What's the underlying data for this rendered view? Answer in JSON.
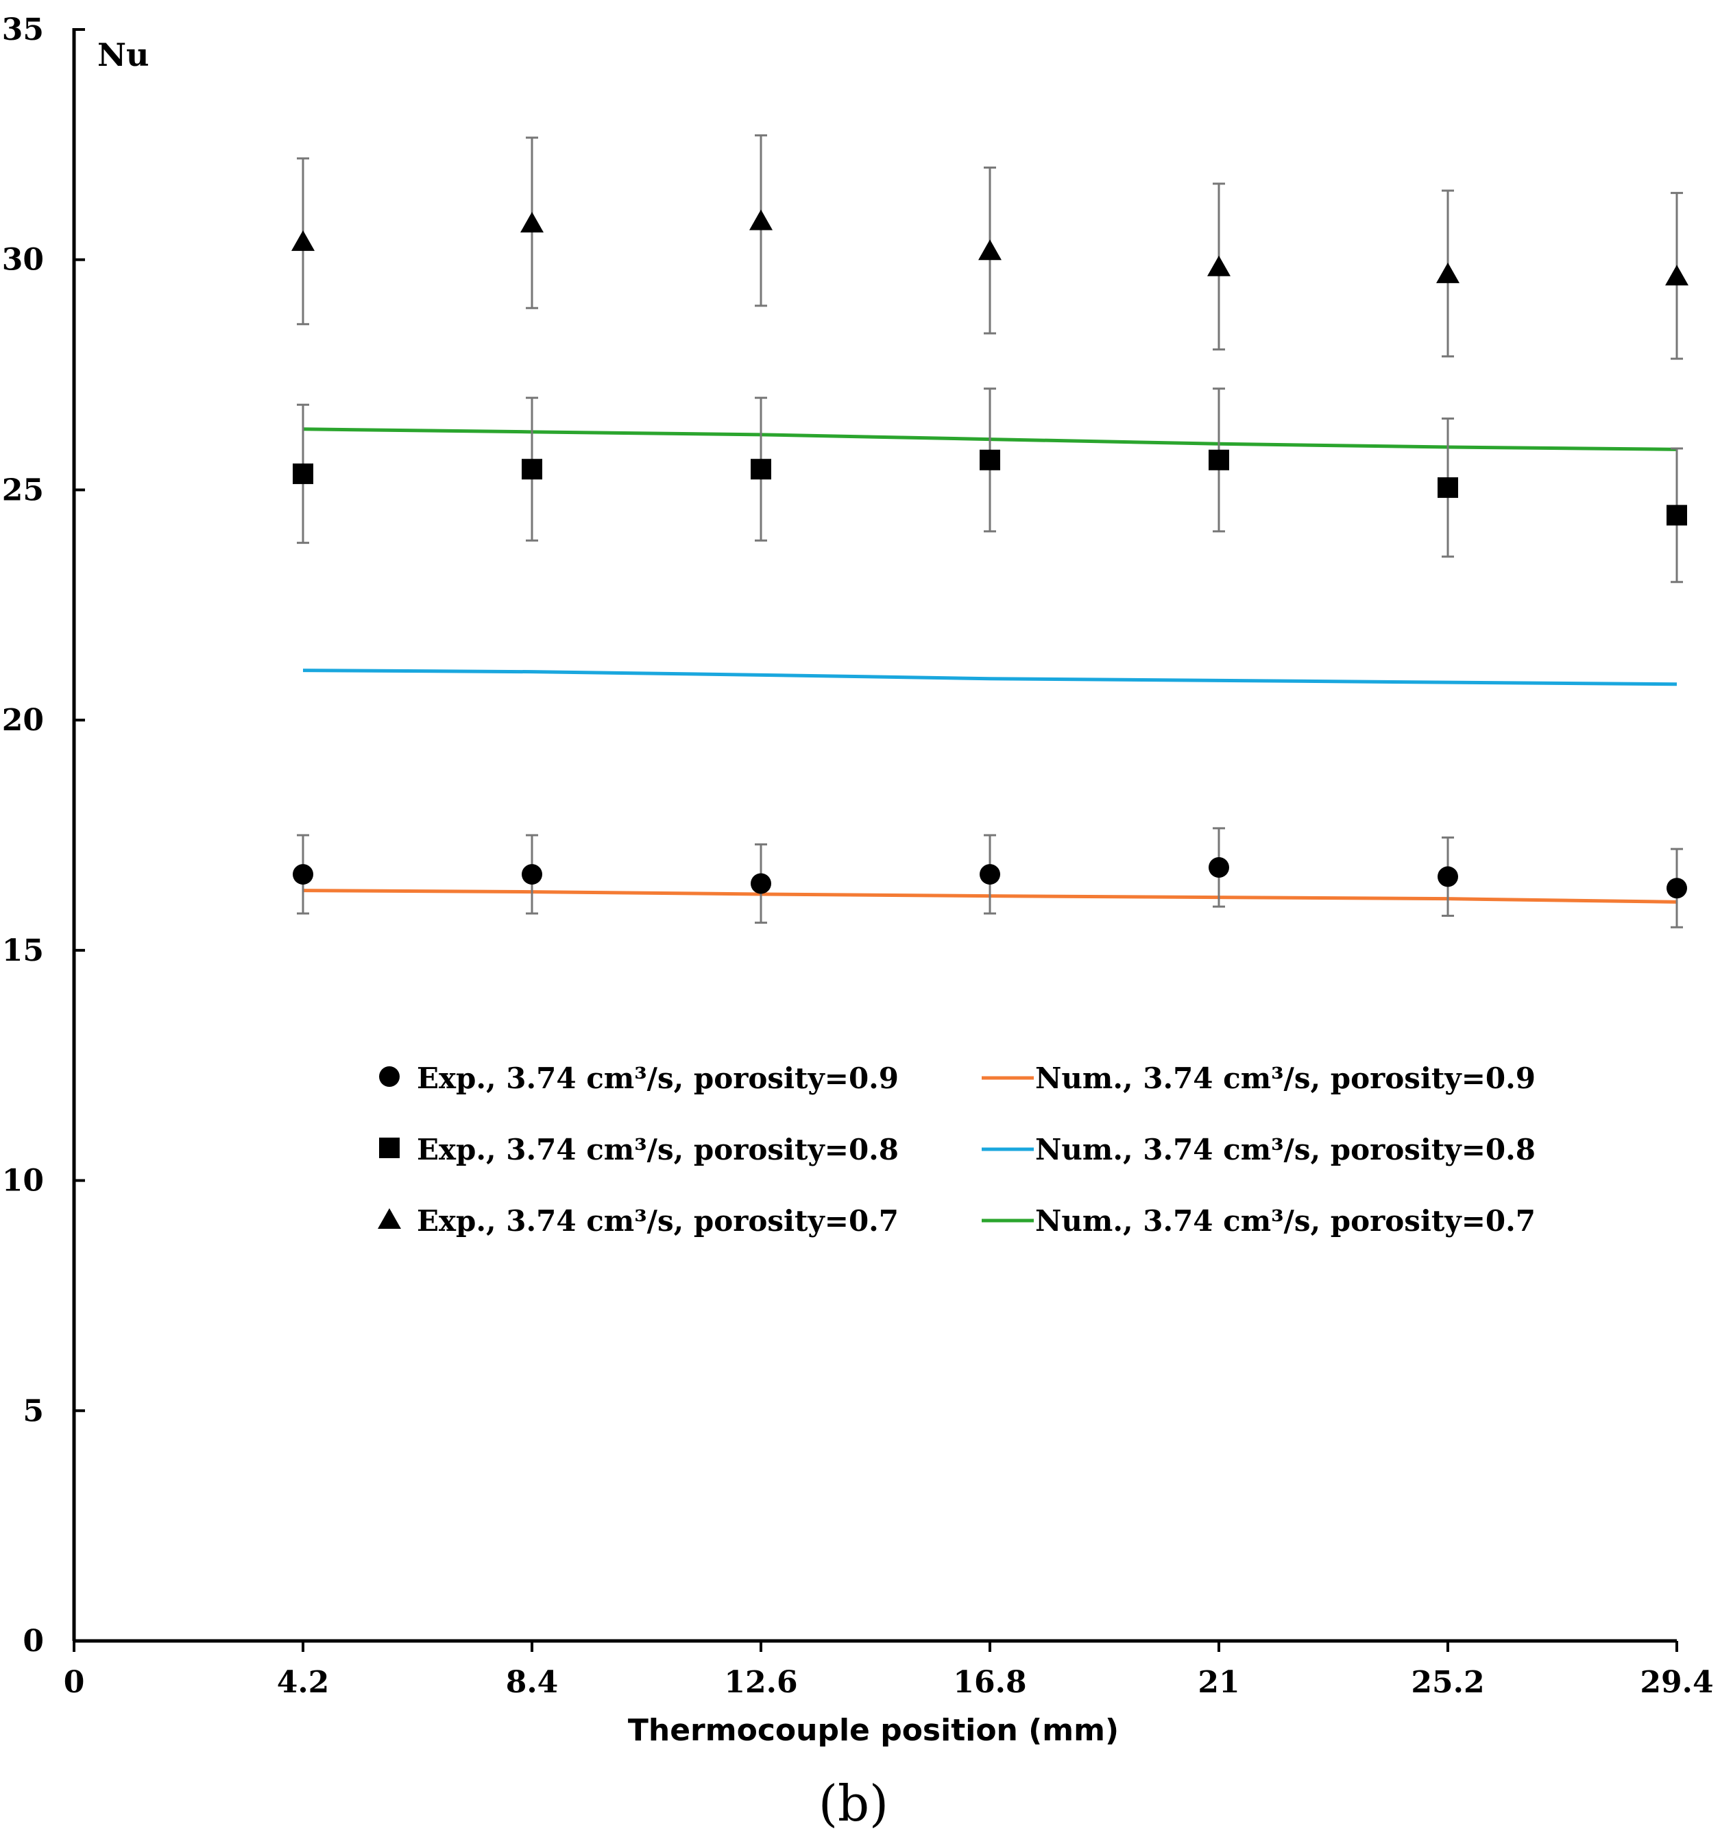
{
  "chart_data": {
    "type": "scatter",
    "title": "",
    "xlabel": "Thermocouple position (mm)",
    "ylabel": "Nu",
    "caption": "(b)",
    "xlim": [
      0,
      29.4
    ],
    "ylim": [
      0,
      35
    ],
    "x_ticks": [
      0,
      4.2,
      8.4,
      12.6,
      16.8,
      21,
      25.2,
      29.4
    ],
    "x_tick_labels": [
      "0",
      "4.2",
      "8.4",
      "12.6",
      "16.8",
      "21",
      "25.2",
      "29.4"
    ],
    "y_ticks": [
      0,
      5,
      10,
      15,
      20,
      25,
      30,
      35
    ],
    "y_tick_labels": [
      "0",
      "5",
      "10",
      "15",
      "20",
      "25",
      "30",
      "35"
    ],
    "grid": false,
    "legend_position": "center",
    "x": [
      4.2,
      8.4,
      12.6,
      16.8,
      21,
      25.2,
      29.4
    ],
    "series": [
      {
        "name": "Exp., 3.74 cm³/s, porosity=0.9",
        "kind": "scatter",
        "marker": "circle",
        "color": "#000000",
        "values": [
          16.65,
          16.65,
          16.45,
          16.65,
          16.8,
          16.6,
          16.35
        ],
        "error": [
          0.85,
          0.85,
          0.85,
          0.85,
          0.85,
          0.85,
          0.85
        ]
      },
      {
        "name": "Exp., 3.74 cm³/s, porosity=0.8",
        "kind": "scatter",
        "marker": "square",
        "color": "#000000",
        "values": [
          25.35,
          25.45,
          25.45,
          25.65,
          25.65,
          25.05,
          24.45
        ],
        "error": [
          1.5,
          1.55,
          1.55,
          1.55,
          1.55,
          1.5,
          1.45
        ]
      },
      {
        "name": "Exp., 3.74 cm³/s, porosity=0.7",
        "kind": "scatter",
        "marker": "triangle",
        "color": "#000000",
        "values": [
          30.4,
          30.8,
          30.85,
          30.2,
          29.85,
          29.7,
          29.65
        ],
        "error": [
          1.8,
          1.85,
          1.85,
          1.8,
          1.8,
          1.8,
          1.8
        ]
      },
      {
        "name": "Num., 3.74 cm³/s, porosity=0.9",
        "kind": "line",
        "color": "#F47B34",
        "values": [
          16.3,
          16.27,
          16.22,
          16.18,
          16.15,
          16.12,
          16.05
        ]
      },
      {
        "name": "Num., 3.74 cm³/s, porosity=0.8",
        "kind": "line",
        "color": "#1AA7DE",
        "values": [
          21.08,
          21.05,
          20.98,
          20.9,
          20.86,
          20.82,
          20.78
        ]
      },
      {
        "name": "Num., 3.74 cm³/s, porosity=0.7",
        "kind": "line",
        "color": "#2BA52E",
        "values": [
          26.32,
          26.26,
          26.2,
          26.1,
          26.0,
          25.93,
          25.88
        ]
      }
    ]
  }
}
